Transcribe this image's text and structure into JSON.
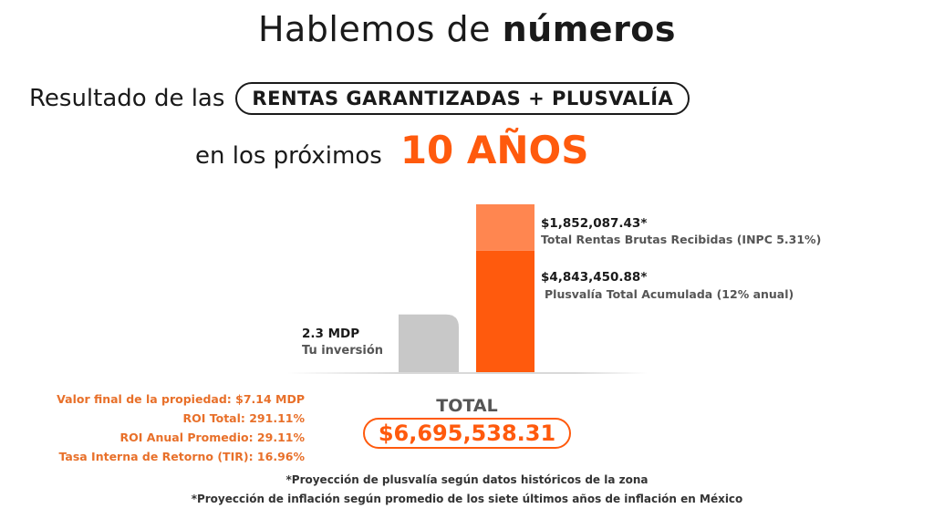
{
  "heading": {
    "regular": "Hablemos de",
    "bold": "números"
  },
  "subheading": {
    "prefix": "Resultado de las",
    "pill": "RENTAS GARANTIZADAS + PLUSVALÍA",
    "line2_prefix": "en los próximos",
    "years": "10 AÑOS"
  },
  "colors": {
    "accent": "#FF5A0D",
    "light_accent": "#FF8650",
    "gray_bar": "#C8C8C8",
    "stat_text": "#E8702A"
  },
  "chart_data": {
    "type": "bar",
    "unit": "MXN",
    "bars": [
      {
        "name": "investment",
        "segments": [
          {
            "value": 2300000,
            "value_label": "2.3 MDP",
            "label": "Tu inversión",
            "color": "#C8C8C8"
          }
        ]
      },
      {
        "name": "returns",
        "segments": [
          {
            "value": 4843450.88,
            "value_label": "$4,843,450.88*",
            "label": "Plusvalía Total Acumulada (12% anual)",
            "color": "#FF5A0D"
          },
          {
            "value": 1852087.43,
            "value_label": "$1,852,087.43*",
            "label": "Total Rentas Brutas Recibidas (INPC 5.31%)",
            "color": "#FF8650"
          }
        ]
      }
    ],
    "total": {
      "label": "TOTAL",
      "value": "$6,695,538.31"
    }
  },
  "stats": [
    "Valor final de la propiedad: $7.14 MDP",
    "ROI Total: 291.11%",
    "ROI Anual Promedio: 29.11%",
    "Tasa Interna de Retorno (TIR): 16.96%"
  ],
  "footnotes": [
    "*Proyección de plusvalía según datos históricos de la zona",
    "*Proyección de inflación según promedio de los siete últimos años de inflación en México"
  ]
}
